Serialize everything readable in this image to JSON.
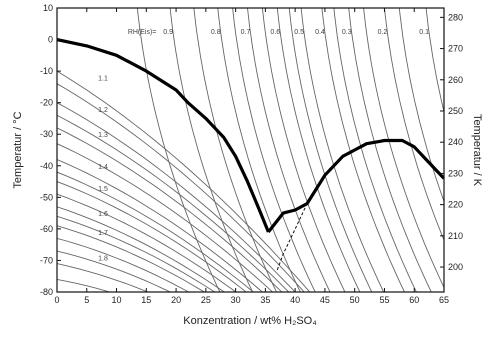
{
  "chart_data": {
    "type": "line",
    "xlabel": "Konzentration / wt% H₂SO₄",
    "ylabel_left": "Temperatur / °C",
    "ylabel_right": "Temperatur / K",
    "xlim": [
      0,
      65
    ],
    "ylim_left": [
      -80,
      10
    ],
    "ylim_right": [
      192,
      283
    ],
    "x_ticks": [
      "0",
      "5",
      "10",
      "15",
      "20",
      "25",
      "30",
      "35",
      "40",
      "45",
      "50",
      "55",
      "60",
      "65"
    ],
    "y_ticks_left": [
      "10",
      "0",
      "-10",
      "-20",
      "-30",
      "-40",
      "-50",
      "-60",
      "-70",
      "-80"
    ],
    "y_ticks_right": [
      "280",
      "270",
      "260",
      "250",
      "240",
      "230",
      "220",
      "210",
      "200"
    ],
    "grid": false,
    "series": [
      {
        "style": "thick",
        "x": [
          0,
          5,
          10,
          15,
          20,
          22,
          25,
          28,
          30,
          32,
          34,
          35.5
        ],
        "y": [
          0,
          -2,
          -5,
          -10,
          -16,
          -20,
          -25,
          -31,
          -37,
          -45,
          -54,
          -61
        ]
      },
      {
        "style": "thick",
        "x": [
          35.5,
          38,
          40,
          42,
          45,
          48,
          50,
          52,
          55,
          58,
          60,
          62,
          64,
          65
        ],
        "y": [
          -61,
          -55,
          -54,
          -52,
          -43,
          -37,
          -35,
          -33,
          -32,
          -32,
          -34,
          -38,
          -42,
          -44
        ]
      },
      {
        "style": "dashed",
        "x": [
          37,
          38,
          39,
          40,
          41,
          42
        ],
        "y": [
          -73,
          -68,
          -64,
          -60,
          -56,
          -52
        ]
      }
    ],
    "isolines": {
      "header_label": "RH(Eis)=",
      "labels": [
        "0.9",
        "0.8",
        "0.7",
        "0.6",
        "0.5",
        "0.4",
        "0.3",
        "0.2",
        "0.1",
        "1.1",
        "1.2",
        "1.3",
        "1.4",
        "1.5",
        "1.6",
        "1.7",
        "1.8"
      ],
      "upper_labeled": [
        {
          "label": "0.9",
          "x_top": 19
        },
        {
          "label": "0.8",
          "x_top": 27
        },
        {
          "label": "0.7",
          "x_top": 32
        },
        {
          "label": "0.6",
          "x_top": 37
        },
        {
          "label": "0.5",
          "x_top": 41
        },
        {
          "label": "0.4",
          "x_top": 44.5
        },
        {
          "label": "0.3",
          "x_top": 49
        },
        {
          "label": "0.2",
          "x_top": 55
        },
        {
          "label": "0.1",
          "x_top": 62
        }
      ],
      "extra_upper_x_top": [
        13.5,
        23,
        29.5,
        34.5,
        39,
        46.5,
        51.5,
        57.5
      ],
      "lower_labeled": [
        {
          "label": "1.1",
          "t_start": -10
        },
        {
          "label": "1.2",
          "t_start": -20
        },
        {
          "label": "1.3",
          "t_start": -28
        },
        {
          "label": "1.4",
          "t_start": -38
        },
        {
          "label": "1.5",
          "t_start": -45
        },
        {
          "label": "1.6",
          "t_start": -53
        },
        {
          "label": "1.7",
          "t_start": -59
        },
        {
          "label": "1.8",
          "t_start": -67
        }
      ],
      "extra_lower_t_start": [
        -14,
        -24,
        -33,
        -42,
        -49,
        -56,
        -63,
        -71,
        -76
      ]
    }
  }
}
